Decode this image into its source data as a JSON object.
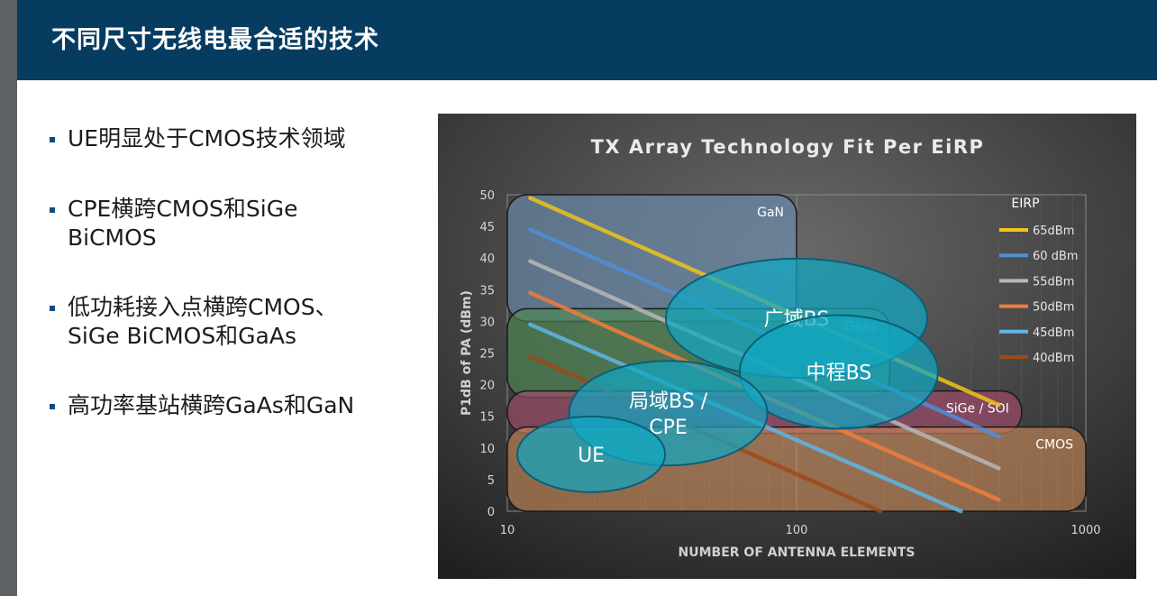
{
  "slide": {
    "title": "不同尺寸无线电最合适的技术",
    "bullets": [
      "UE明显处于CMOS技术领域",
      "CPE横跨CMOS和SiGe\nBiCMOS",
      "低功耗接入点横跨CMOS、\nSiGe BiCMOS和GaAs",
      "高功率基站横跨GaAs和GaN"
    ]
  },
  "chart_data": {
    "type": "line",
    "title": "TX Array Technology Fit Per EiRP",
    "xlabel": "NUMBER OF ANTENNA ELEMENTS",
    "ylabel": "P1dB of PA (dBm)",
    "xscale": "log",
    "xlim": [
      10,
      1000
    ],
    "ylim": [
      0,
      50
    ],
    "xticks": [
      "10",
      "100",
      "1000"
    ],
    "yticks": [
      "0",
      "5",
      "10",
      "15",
      "20",
      "25",
      "30",
      "35",
      "40",
      "45",
      "50"
    ],
    "grid": true,
    "legend_title": "EIRP",
    "legend_position": "right",
    "series": [
      {
        "name": "65dBm",
        "color": "#f0c419",
        "x": [
          12,
          500
        ],
        "y": [
          49.5,
          16.8
        ]
      },
      {
        "name": "60 dBm",
        "color": "#4f8fd9",
        "x": [
          12,
          500
        ],
        "y": [
          44.5,
          11.8
        ]
      },
      {
        "name": "55dBm",
        "color": "#b8b8b8",
        "x": [
          12,
          500
        ],
        "y": [
          39.5,
          6.8
        ]
      },
      {
        "name": "50dBm",
        "color": "#f07e3a",
        "x": [
          12,
          500
        ],
        "y": [
          34.5,
          1.8
        ]
      },
      {
        "name": "45dBm",
        "color": "#5eb6e6",
        "x": [
          12,
          370
        ],
        "y": [
          29.5,
          0
        ]
      },
      {
        "name": "40dBm",
        "color": "#9c4a1a",
        "x": [
          12,
          195
        ],
        "y": [
          24.5,
          0
        ]
      }
    ],
    "technology_regions": [
      {
        "label": "GaN",
        "color": "#6c8fb3",
        "x": [
          10,
          100
        ],
        "y": [
          30,
          50
        ]
      },
      {
        "label": "GaAs",
        "color": "#4e8a52",
        "x": [
          10,
          210
        ],
        "y": [
          18,
          32
        ]
      },
      {
        "label": "SiGe / SOI",
        "color": "#a84a6e",
        "x": [
          10,
          600
        ],
        "y": [
          12.3,
          19
        ]
      },
      {
        "label": "CMOS",
        "color": "#c98a5a",
        "x": [
          10,
          1000
        ],
        "y": [
          0,
          13.3
        ]
      }
    ],
    "use_cases": [
      {
        "label": "广域BS",
        "x": 100,
        "y": 30.5
      },
      {
        "label": "中程BS",
        "x": 140,
        "y": 22
      },
      {
        "label": "局域BS /\nCPE",
        "x": 36,
        "y": 15.5
      },
      {
        "label": "UE",
        "x": 19.5,
        "y": 9
      }
    ]
  }
}
